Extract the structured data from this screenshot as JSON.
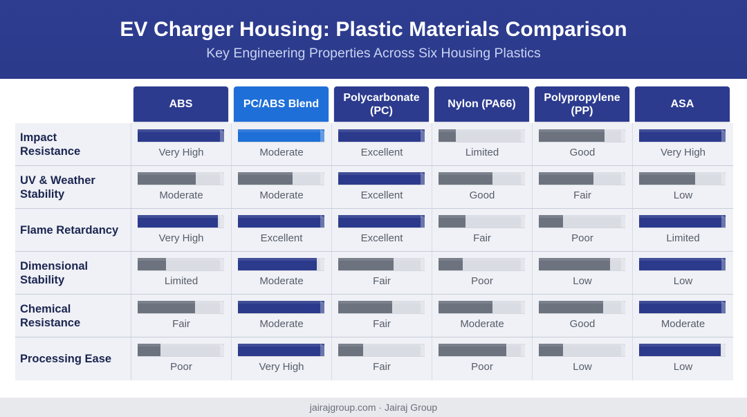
{
  "colors": {
    "header_band": "#2e3d90",
    "header_box": "#2c3b8e",
    "highlight": "#1f6fd8",
    "navy": "#2c3a8c",
    "gray": "#6c737f",
    "track": "#d9dce2",
    "row_bg": "#eff1f6",
    "footer_bg": "#e8e9ed"
  },
  "chart_data": {
    "type": "table",
    "title": "EV Charger Housing: Plastic Materials Comparison",
    "subtitle": "Key Engineering Properties Across Six Housing Plastics",
    "highlight_column_index": 1,
    "columns": [
      "ABS",
      "PC/ABS Blend",
      "Polycarbonate (PC)",
      "Nylon (PA66)",
      "Polypropylene (PP)",
      "ASA"
    ],
    "rows": [
      {
        "label": "Impact\nResistance",
        "cells": [
          {
            "rating": "Very High",
            "fill": 1.0,
            "color": "#2c3a8c"
          },
          {
            "rating": "Moderate",
            "fill": 1.0,
            "color": "#1f6fd8"
          },
          {
            "rating": "Excellent",
            "fill": 1.0,
            "color": "#2c3a8c"
          },
          {
            "rating": "Limited",
            "fill": 0.2,
            "color": "#6c737f"
          },
          {
            "rating": "Good",
            "fill": 0.76,
            "color": "#6c737f"
          },
          {
            "rating": "Very High",
            "fill": 1.0,
            "color": "#2c3a8c"
          }
        ]
      },
      {
        "label": "UV & Weather\nStability",
        "cells": [
          {
            "rating": "Moderate",
            "fill": 0.67,
            "color": "#6c737f"
          },
          {
            "rating": "Moderate",
            "fill": 0.63,
            "color": "#6c737f"
          },
          {
            "rating": "Excellent",
            "fill": 1.0,
            "color": "#2c3a8c"
          },
          {
            "rating": "Good",
            "fill": 0.62,
            "color": "#6c737f"
          },
          {
            "rating": "Fair",
            "fill": 0.63,
            "color": "#6c737f"
          },
          {
            "rating": "Low",
            "fill": 0.65,
            "color": "#6c737f"
          }
        ]
      },
      {
        "label": "Flame Retardancy",
        "cells": [
          {
            "rating": "Very High",
            "fill": 0.93,
            "color": "#2c3a8c"
          },
          {
            "rating": "Excellent",
            "fill": 1.0,
            "color": "#2c3a8c"
          },
          {
            "rating": "Excellent",
            "fill": 1.0,
            "color": "#2c3a8c"
          },
          {
            "rating": "Fair",
            "fill": 0.31,
            "color": "#6c737f"
          },
          {
            "rating": "Poor",
            "fill": 0.28,
            "color": "#6c737f"
          },
          {
            "rating": "Limited",
            "fill": 1.0,
            "color": "#2c3a8c"
          }
        ]
      },
      {
        "label": "Dimensional\nStability",
        "cells": [
          {
            "rating": "Limited",
            "fill": 0.33,
            "color": "#6c737f"
          },
          {
            "rating": "Moderate",
            "fill": 0.91,
            "color": "#2c3a8c"
          },
          {
            "rating": "Fair",
            "fill": 0.64,
            "color": "#6c737f"
          },
          {
            "rating": "Poor",
            "fill": 0.28,
            "color": "#6c737f"
          },
          {
            "rating": "Low",
            "fill": 0.82,
            "color": "#6c737f"
          },
          {
            "rating": "Low",
            "fill": 1.0,
            "color": "#2c3a8c"
          }
        ]
      },
      {
        "label": "Chemical\nResistance",
        "cells": [
          {
            "rating": "Fair",
            "fill": 0.66,
            "color": "#6c737f"
          },
          {
            "rating": "Moderate",
            "fill": 1.0,
            "color": "#2c3a8c"
          },
          {
            "rating": "Fair",
            "fill": 0.62,
            "color": "#6c737f"
          },
          {
            "rating": "Moderate",
            "fill": 0.62,
            "color": "#6c737f"
          },
          {
            "rating": "Good",
            "fill": 0.74,
            "color": "#6c737f"
          },
          {
            "rating": "Moderate",
            "fill": 1.0,
            "color": "#2c3a8c"
          }
        ]
      },
      {
        "label": "Processing Ease",
        "cells": [
          {
            "rating": "Poor",
            "fill": 0.26,
            "color": "#6c737f"
          },
          {
            "rating": "Very High",
            "fill": 1.0,
            "color": "#2c3a8c"
          },
          {
            "rating": "Fair",
            "fill": 0.29,
            "color": "#6c737f"
          },
          {
            "rating": "Poor",
            "fill": 0.78,
            "color": "#6c737f"
          },
          {
            "rating": "Low",
            "fill": 0.28,
            "color": "#6c737f"
          },
          {
            "rating": "Low",
            "fill": 0.94,
            "color": "#2c3a8c"
          }
        ]
      }
    ]
  },
  "footer": {
    "text": "jairajgroup.com · Jairaj Group"
  }
}
